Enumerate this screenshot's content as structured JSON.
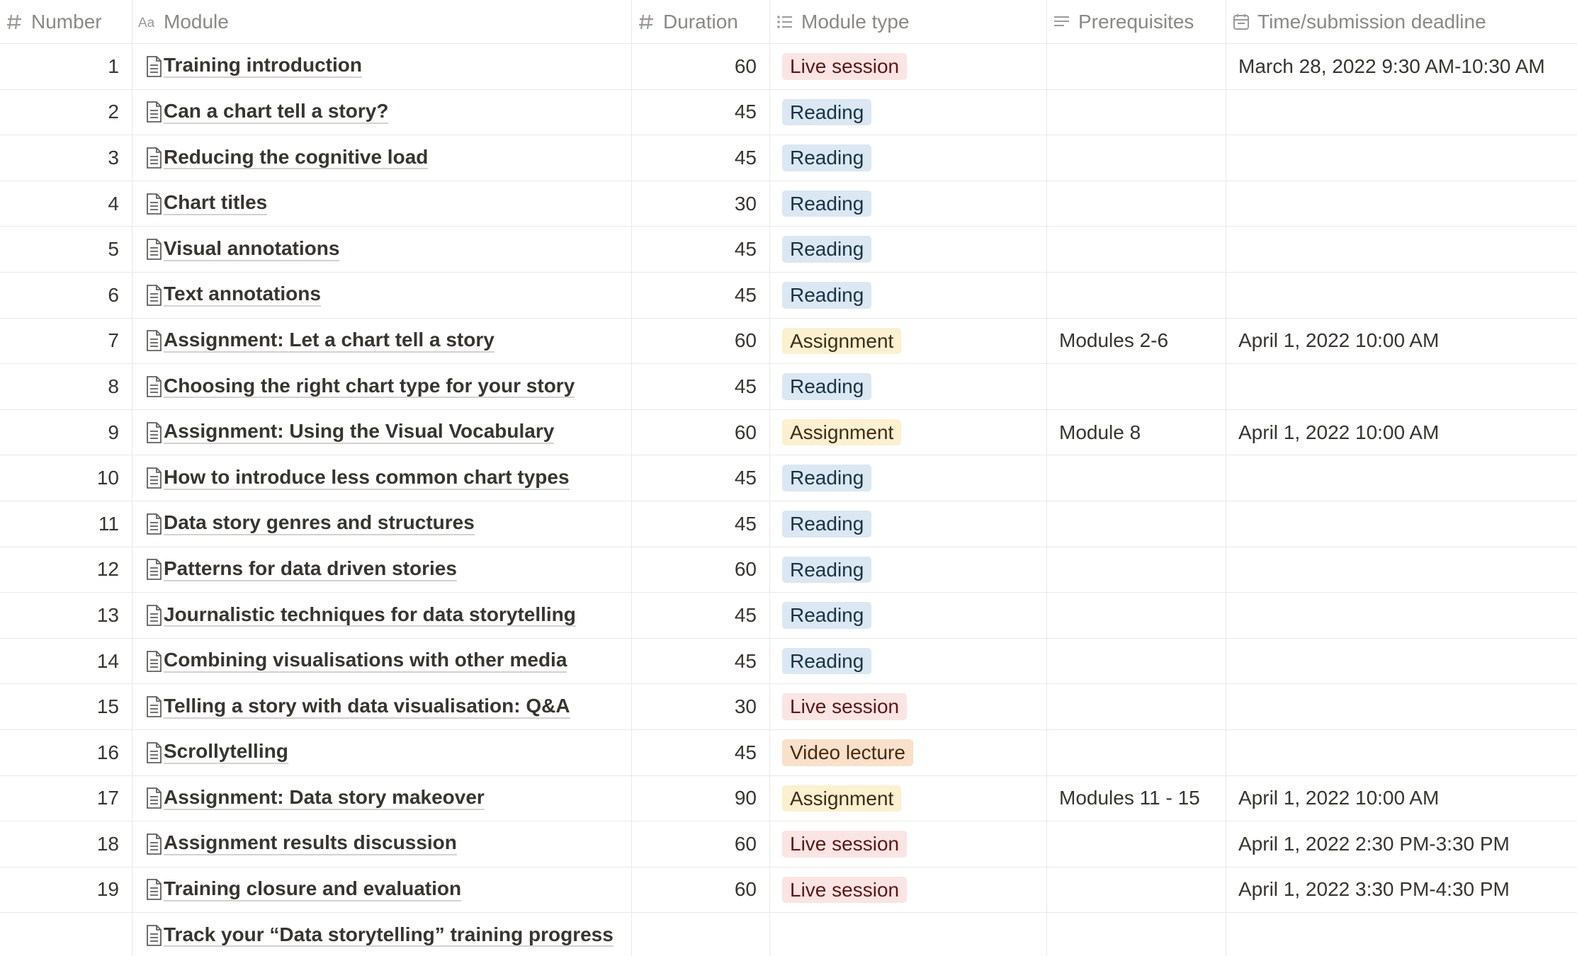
{
  "table": {
    "columns": [
      "Number",
      "Module",
      "Duration",
      "Module type",
      "Prerequisites",
      "Time/submission deadline"
    ],
    "module_types": [
      {
        "name": "Live session",
        "bg": "#fbe4e4",
        "fg": "#5d1715"
      },
      {
        "name": "Reading",
        "bg": "#dbe7f2",
        "fg": "#183347"
      },
      {
        "name": "Assignment",
        "bg": "#fbf0cf",
        "fg": "#402c1b"
      },
      {
        "name": "Video lecture",
        "bg": "#f8e0ca",
        "fg": "#49290e"
      }
    ],
    "rows": [
      {
        "number": 1,
        "module": "Training introduction",
        "duration": 60,
        "type": 0,
        "deadline": "March 28, 2022 9:30 AM-10:30 AM"
      },
      {
        "number": 2,
        "module": "Can a chart tell a story?",
        "duration": 45,
        "type": 1
      },
      {
        "number": 3,
        "module": "Reducing the cognitive load",
        "duration": 45,
        "type": 1
      },
      {
        "number": 4,
        "module": "Chart titles",
        "duration": 30,
        "type": 1
      },
      {
        "number": 5,
        "module": "Visual annotations",
        "duration": 45,
        "type": 1
      },
      {
        "number": 6,
        "module": "Text annotations",
        "duration": 45,
        "type": 1
      },
      {
        "number": 7,
        "module": "Assignment: Let a chart tell a story",
        "duration": 60,
        "type": 2,
        "prerequisites": "Modules 2-6",
        "deadline": "April 1, 2022 10:00 AM"
      },
      {
        "number": 8,
        "module": "Choosing the right chart type for your story",
        "duration": 45,
        "type": 1
      },
      {
        "number": 9,
        "module": "Assignment: Using the Visual Vocabulary",
        "duration": 60,
        "type": 2,
        "prerequisites": "Module 8",
        "deadline": "April 1, 2022 10:00 AM"
      },
      {
        "number": 10,
        "module": "How to introduce less common chart types",
        "duration": 45,
        "type": 1
      },
      {
        "number": 11,
        "module": "Data story genres and structures",
        "duration": 45,
        "type": 1
      },
      {
        "number": 12,
        "module": "Patterns for data driven stories",
        "duration": 60,
        "type": 1
      },
      {
        "number": 13,
        "module": "Journalistic techniques for data storytelling",
        "duration": 45,
        "type": 1
      },
      {
        "number": 14,
        "module": "Combining visualisations with other media",
        "duration": 45,
        "type": 1
      },
      {
        "number": 15,
        "module": "Telling a story with data visualisation: Q&A",
        "duration": 30,
        "type": 0
      },
      {
        "number": 16,
        "module": "Scrollytelling",
        "duration": 45,
        "type": 3
      },
      {
        "number": 17,
        "module": "Assignment: Data story makeover",
        "duration": 90,
        "type": 2,
        "prerequisites": "Modules 11 - 15",
        "deadline": "April 1, 2022 10:00 AM"
      },
      {
        "number": 18,
        "module": "Assignment results discussion",
        "duration": 60,
        "type": 0,
        "deadline": "April 1, 2022 2:30 PM-3:30 PM"
      },
      {
        "number": 19,
        "module": "Training closure and evaluation",
        "duration": 60,
        "type": 0,
        "deadline": "April 1, 2022 3:30 PM-4:30 PM"
      },
      {
        "module": "Track your “Data storytelling” training progress"
      }
    ]
  }
}
